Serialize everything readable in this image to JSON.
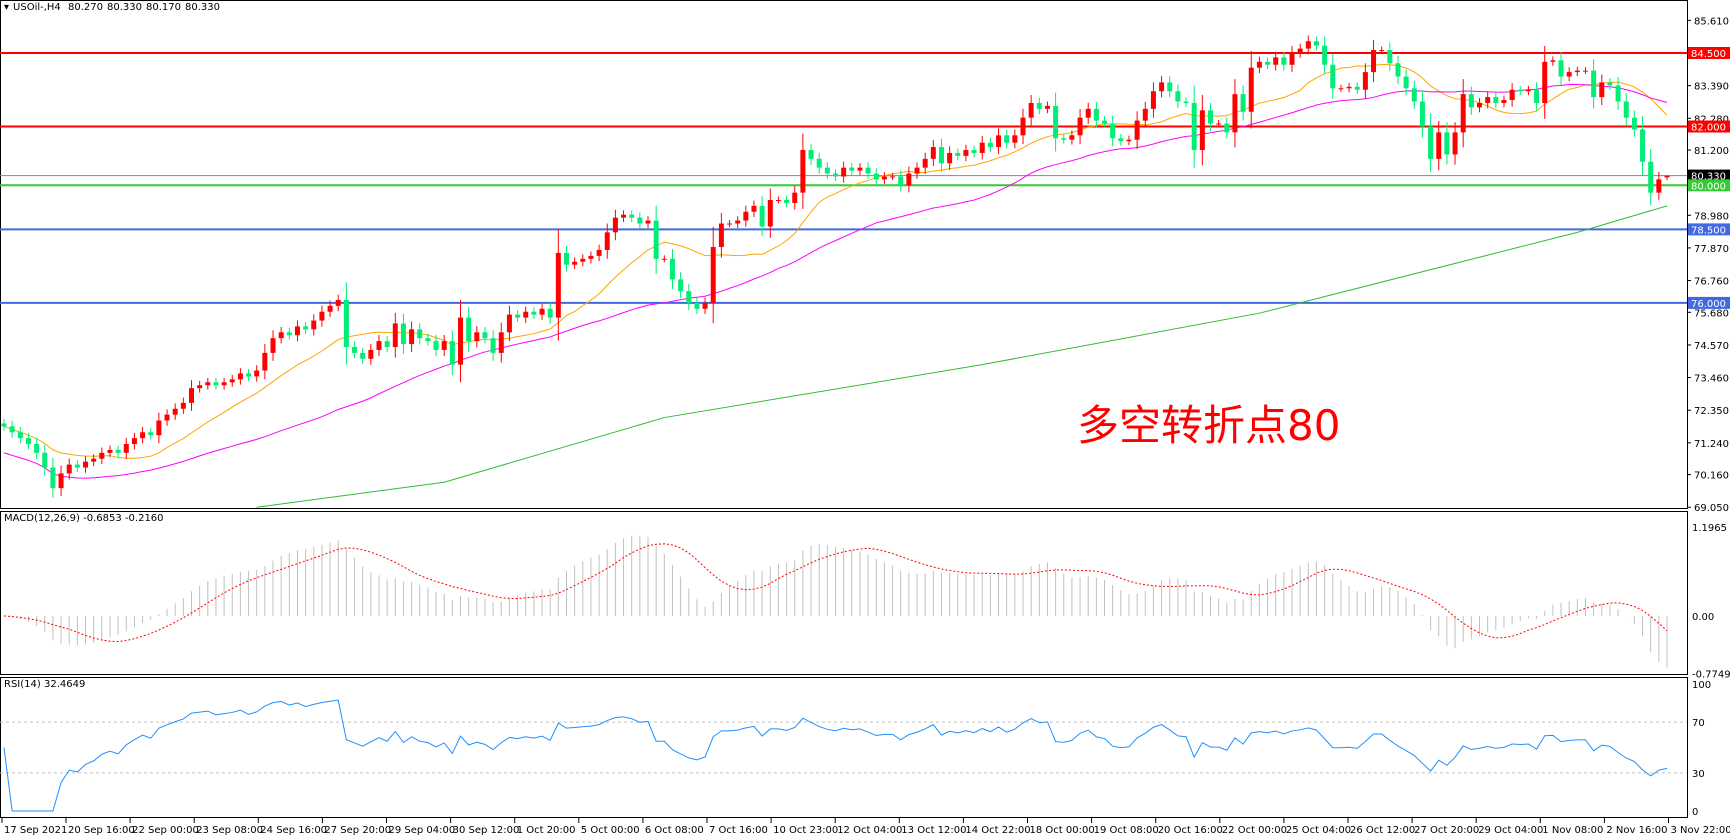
{
  "header": {
    "symbol": "USOil-,H4",
    "open": "80.270",
    "high": "80.330",
    "low": "80.170",
    "close": "80.330"
  },
  "annotation": "多空转折点80",
  "macd_label": {
    "name": "MACD(12,26,9)",
    "v1": "-0.6853",
    "v2": "-0.2160"
  },
  "rsi_label": {
    "name": "RSI(14)",
    "v1": "32.4649"
  },
  "colors": {
    "bull": "#ff0000",
    "bear": "#00ee77",
    "ma_fast": "#ffa500",
    "ma_mid": "#ff00ff",
    "ma_slow": "#33bb33",
    "macd_hist": "#c0c0c0",
    "macd_signal": "#ff0000",
    "rsi": "#1e90ff"
  },
  "chart_data": [
    {
      "type": "candlestick",
      "title": "USOil-,H4",
      "price_axis_ticks": [
        "85.610",
        "83.390",
        "82.280",
        "81.200",
        "78.980",
        "77.870",
        "76.760",
        "75.680",
        "74.570",
        "73.460",
        "72.350",
        "71.240",
        "70.160",
        "69.050"
      ],
      "ylim": [
        69.05,
        85.61
      ],
      "time_axis_ticks": [
        "17 Sep 2021",
        "20 Sep 16:00",
        "22 Sep 00:00",
        "23 Sep 08:00",
        "24 Sep 16:00",
        "27 Sep 20:00",
        "29 Sep 04:00",
        "30 Sep 12:00",
        "1 Oct 20:00",
        "5 Oct 00:00",
        "6 Oct 08:00",
        "7 Oct 16:00",
        "10 Oct 23:00",
        "12 Oct 04:00",
        "13 Oct 12:00",
        "14 Oct 22:00",
        "18 Oct 00:00",
        "19 Oct 08:00",
        "20 Oct 16:00",
        "22 Oct 00:00",
        "25 Oct 04:00",
        "26 Oct 12:00",
        "27 Oct 20:00",
        "29 Oct 04:00",
        "1 Nov 08:00",
        "2 Nov 16:00",
        "3 Nov 22:00"
      ],
      "closes": [
        71.8,
        71.6,
        71.4,
        71.2,
        70.9,
        70.4,
        69.7,
        70.2,
        70.5,
        70.4,
        70.6,
        70.7,
        70.9,
        71.0,
        70.9,
        71.2,
        71.4,
        71.6,
        71.5,
        72.0,
        72.2,
        72.4,
        72.6,
        73.1,
        73.2,
        73.3,
        73.2,
        73.3,
        73.4,
        73.6,
        73.5,
        73.7,
        74.3,
        74.8,
        75.0,
        74.9,
        75.2,
        75.1,
        75.4,
        75.7,
        75.9,
        76.1,
        74.5,
        74.3,
        74.1,
        74.4,
        74.7,
        74.5,
        75.3,
        74.6,
        75.1,
        74.8,
        74.7,
        74.4,
        74.7,
        73.9,
        75.5,
        74.7,
        75.0,
        74.8,
        74.3,
        75.0,
        75.6,
        75.5,
        75.7,
        75.6,
        75.8,
        75.5,
        77.7,
        77.3,
        77.4,
        77.5,
        77.6,
        77.8,
        78.4,
        78.9,
        79.0,
        78.9,
        78.7,
        78.8,
        77.5,
        77.5,
        76.8,
        76.4,
        76.0,
        75.8,
        76.0,
        77.9,
        78.7,
        78.7,
        78.8,
        79.1,
        79.3,
        78.6,
        79.5,
        79.5,
        79.4,
        79.75,
        81.2,
        80.9,
        80.6,
        80.4,
        80.3,
        80.6,
        80.5,
        80.6,
        80.4,
        80.2,
        80.3,
        80.3,
        80.0,
        80.4,
        80.6,
        80.9,
        81.3,
        80.75,
        81.1,
        81.0,
        81.2,
        81.1,
        81.45,
        81.3,
        81.7,
        81.45,
        81.7,
        82.3,
        82.8,
        82.6,
        82.7,
        81.6,
        81.55,
        81.7,
        82.3,
        82.6,
        82.2,
        82.1,
        81.6,
        81.5,
        81.55,
        82.2,
        82.6,
        83.2,
        83.5,
        83.2,
        82.85,
        82.8,
        81.2,
        82.55,
        82.1,
        82.1,
        81.8,
        83.1,
        82.5,
        84.0,
        84.2,
        84.1,
        84.35,
        84.1,
        84.5,
        84.65,
        84.9,
        84.75,
        84.1,
        83.3,
        83.3,
        83.35,
        83.25,
        83.85,
        84.6,
        84.6,
        84.15,
        83.7,
        83.3,
        82.85,
        82.0,
        80.9,
        81.8,
        81.05,
        81.8,
        83.1,
        82.65,
        82.8,
        83.0,
        82.8,
        82.9,
        83.25,
        83.2,
        83.25,
        82.8,
        84.2,
        84.25,
        83.7,
        83.85,
        83.9,
        83.9,
        83.0,
        83.5,
        83.4,
        82.85,
        82.3,
        81.9,
        80.8,
        79.75,
        80.2,
        80.33
      ],
      "last_bar": {
        "open": 80.27,
        "high": 80.33,
        "low": 80.17,
        "close": 80.33
      },
      "ma_slow_points": [
        [
          31,
          69.05
        ],
        [
          54,
          69.9
        ],
        [
          81,
          72.1
        ],
        [
          120,
          73.9
        ],
        [
          154,
          75.65
        ],
        [
          193,
          78.4
        ],
        [
          204,
          79.3
        ]
      ],
      "levels": [
        {
          "price": 84.5,
          "label": "84.500",
          "color": "#ff0000"
        },
        {
          "price": 82.0,
          "label": "82.000",
          "color": "#ff0000"
        },
        {
          "price": 80.33,
          "label": "80.330",
          "color": "#778899",
          "label_bg": "#000000"
        },
        {
          "price": 80.0,
          "label": "80.000",
          "color": "#33cc33"
        },
        {
          "price": 78.5,
          "label": "78.500",
          "color": "#4169e1"
        },
        {
          "price": 76.0,
          "label": "76.000",
          "color": "#4169e1"
        }
      ]
    },
    {
      "type": "bar",
      "title": "MACD(12,26,9)",
      "axis_ticks": [
        "1.1965",
        "0.00",
        "-0.7749"
      ],
      "ylim": [
        -0.7749,
        1.1965
      ]
    },
    {
      "type": "line",
      "title": "RSI(14)",
      "axis_ticks": [
        "100",
        "70",
        "30",
        "0"
      ],
      "ylim": [
        0,
        100
      ],
      "levels": [
        70,
        30
      ]
    }
  ]
}
